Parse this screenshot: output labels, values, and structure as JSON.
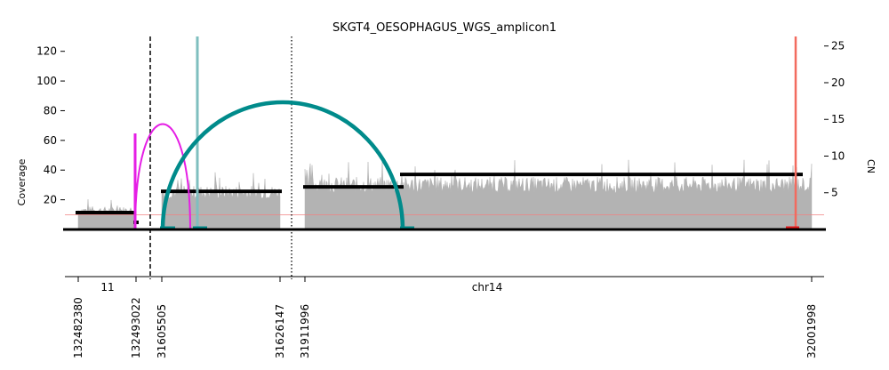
{
  "chart_data": {
    "type": "area",
    "title": "SKGT4_OESOPHAGUS_WGS_amplicon1",
    "ylabel_left": "Coverage",
    "ylabel_right": "CN",
    "y_left_ticks": [
      20,
      40,
      60,
      80,
      100,
      120
    ],
    "y_left_range": [
      0,
      130
    ],
    "y_right_ticks": [
      5,
      10,
      15,
      20,
      25
    ],
    "y_right_range": [
      0,
      26.3
    ],
    "chromosome_labels": [
      "11",
      "chr14"
    ],
    "segments": [
      {
        "chrom": "11",
        "start": 132482380,
        "end": 132493022,
        "coverage": 13,
        "cn": 2.0
      },
      {
        "chrom": "chr14",
        "start": 31605505,
        "end": 31626147,
        "coverage": 25,
        "cn": 5.0
      },
      {
        "chrom": "chr14",
        "start": 31911996,
        "end": 32001998,
        "coverage": 30,
        "cn": 6.0
      }
    ],
    "breakpoint_labels": [
      "132482380",
      "132493022",
      "31605505",
      "31626147",
      "31911996",
      "32001998"
    ],
    "copy_number_segments": [
      {
        "chrom": "11",
        "cn": 2.3
      },
      {
        "chrom": "chr14",
        "cn": 5.2
      },
      {
        "chrom": "chr14",
        "cn": 5.8
      },
      {
        "chrom": "chr14",
        "cn": 7.5
      }
    ],
    "reference_cn": 2.0,
    "colors": {
      "coverage": "#b3b3b3",
      "segment": "#000000",
      "foldback": "#e51ee5",
      "everted": "#008b8b",
      "everted_light": "#7fbfbf",
      "discordant_edge": "#f26b5f",
      "reference_line": "#f08080"
    }
  }
}
